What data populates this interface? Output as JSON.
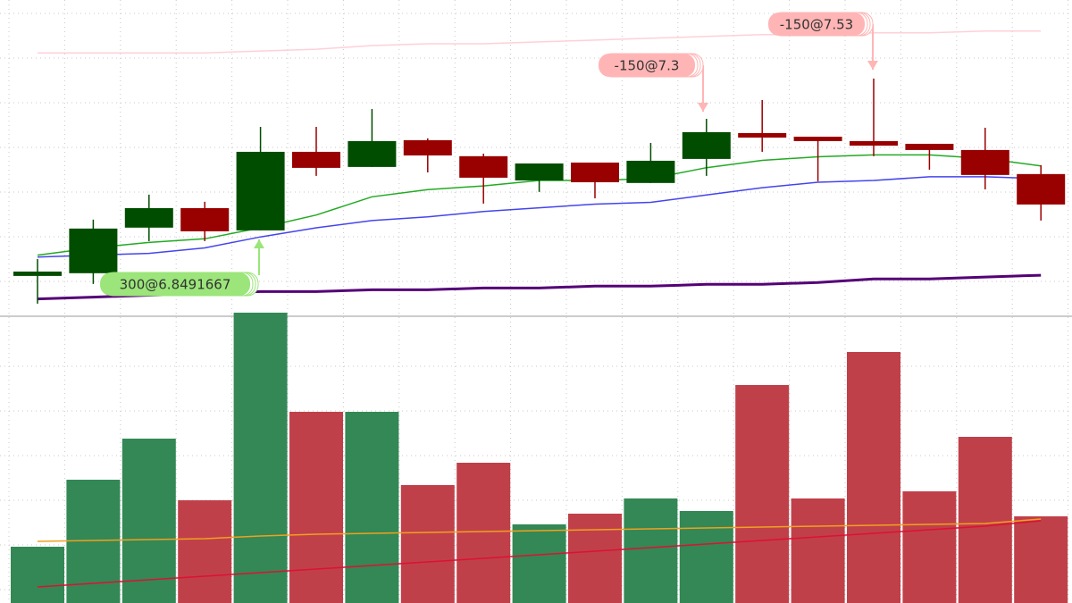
{
  "chart_data": {
    "type": "candlestick",
    "ylim": [
      6.17,
      7.91
    ],
    "up_color": "#004d00",
    "down_color": "#990000",
    "open": [
      6.396,
      6.411,
      6.661,
      6.768,
      6.646,
      7.077,
      6.994,
      7.141,
      7.053,
      6.92,
      7.018,
      6.906,
      7.038,
      7.18,
      7.16,
      7.136,
      7.121,
      7.087,
      6.955
    ],
    "high": [
      6.489,
      6.705,
      6.842,
      6.803,
      7.214,
      7.214,
      7.312,
      7.151,
      7.067,
      7.013,
      7.018,
      7.126,
      7.258,
      7.361,
      7.16,
      7.479,
      7.121,
      7.209,
      7.004
    ],
    "low": [
      6.244,
      6.352,
      6.587,
      6.587,
      6.646,
      6.945,
      6.994,
      6.964,
      6.793,
      6.857,
      6.822,
      6.906,
      6.945,
      7.077,
      6.915,
      7.053,
      6.979,
      6.871,
      6.7
    ],
    "close": [
      6.42,
      6.656,
      6.768,
      6.641,
      7.077,
      6.989,
      7.136,
      7.057,
      6.935,
      7.013,
      6.91,
      7.028,
      7.185,
      7.155,
      7.136,
      7.111,
      7.087,
      6.95,
      6.788
    ],
    "lines": [
      {
        "color": "#22aa22",
        "values": [
          6.51,
          6.55,
          6.58,
          6.6,
          6.66,
          6.73,
          6.83,
          6.87,
          6.89,
          6.92,
          6.92,
          6.93,
          6.99,
          7.03,
          7.05,
          7.06,
          7.06,
          7.04,
          7.0
        ]
      },
      {
        "color": "#4444ee",
        "values": [
          6.5,
          6.51,
          6.52,
          6.55,
          6.61,
          6.66,
          6.7,
          6.72,
          6.75,
          6.77,
          6.79,
          6.8,
          6.84,
          6.88,
          6.91,
          6.92,
          6.94,
          6.94,
          6.93
        ]
      },
      {
        "color": "#550077",
        "values": [
          6.27,
          6.28,
          6.29,
          6.3,
          6.31,
          6.31,
          6.32,
          6.32,
          6.33,
          6.33,
          6.34,
          6.34,
          6.35,
          6.35,
          6.36,
          6.38,
          6.38,
          6.39,
          6.4
        ]
      },
      {
        "color": "#ffd0d8",
        "values": [
          7.62,
          7.62,
          7.62,
          7.62,
          7.63,
          7.64,
          7.66,
          7.67,
          7.67,
          7.68,
          7.69,
          7.7,
          7.71,
          7.72,
          7.72,
          7.73,
          7.73,
          7.74,
          7.74
        ]
      }
    ],
    "volume": {
      "ylim": [
        0,
        330
      ],
      "up_color": "#338855",
      "down_color": "#c0404a",
      "values": [
        63,
        138,
        184,
        115,
        325,
        214,
        214,
        132,
        157,
        88,
        100,
        117,
        103,
        244,
        117,
        281,
        125,
        186,
        97
      ],
      "lines": [
        {
          "color": "#f0a020",
          "values": [
            69,
            70,
            71,
            72,
            75,
            77,
            78,
            79,
            80,
            81,
            82,
            83,
            84,
            85,
            86,
            87,
            88,
            89,
            94
          ]
        },
        {
          "color": "#dd1133",
          "values": [
            18,
            22,
            26,
            30,
            34,
            38,
            42,
            46,
            50,
            54,
            58,
            62,
            66,
            70,
            74,
            78,
            82,
            86,
            92
          ]
        }
      ]
    },
    "trades": [
      {
        "label": "300@6.8491667",
        "color": "#9be57a"
      },
      {
        "label": "-150@7.3",
        "color": "#ffb5b5"
      },
      {
        "label": "-150@7.53",
        "color": "#ffb5b5"
      }
    ]
  }
}
